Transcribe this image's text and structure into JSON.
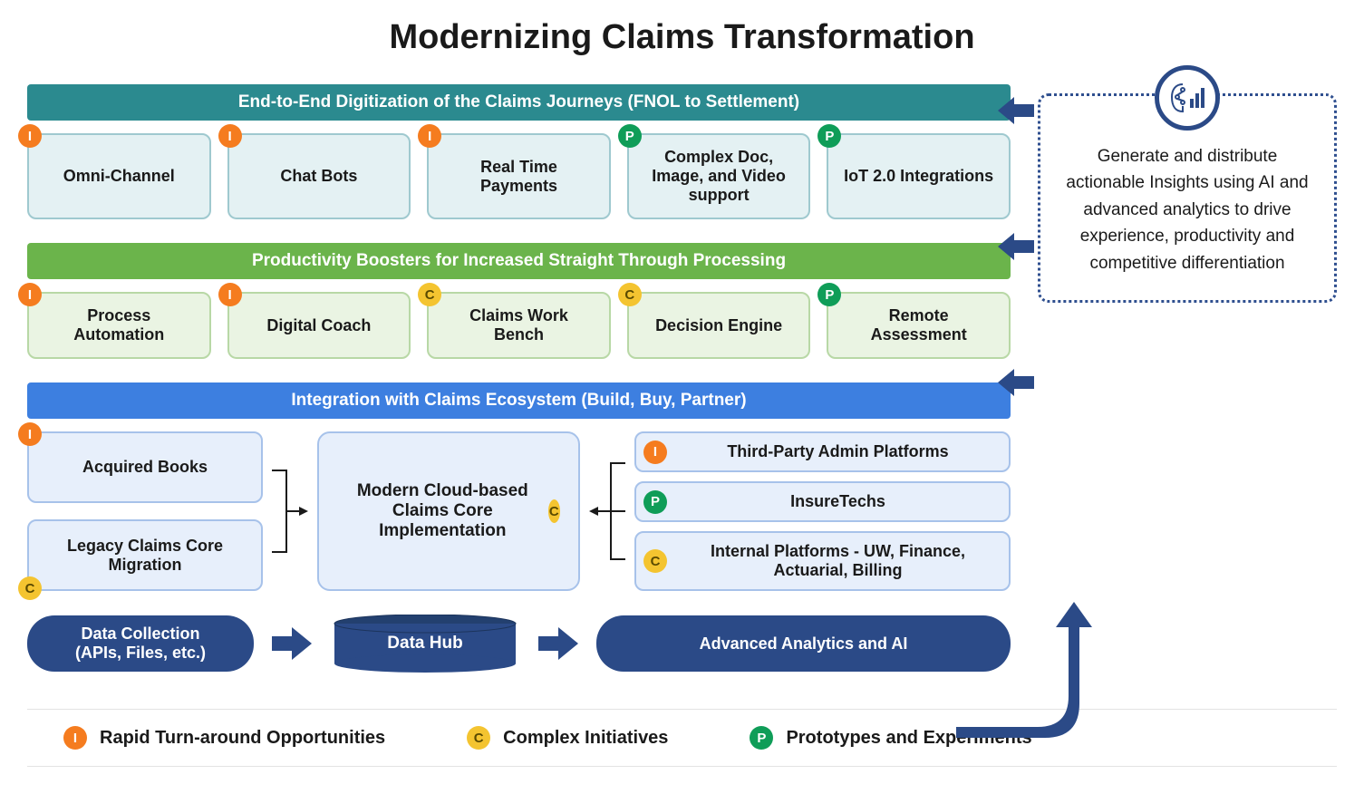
{
  "title": "Modernizing Claims Transformation",
  "colors": {
    "badge_I_bg": "#f57c1f",
    "badge_C_bg": "#f4c430",
    "badge_C_text": "#5a4a00",
    "badge_P_bg": "#0f9d58",
    "navy": "#2b4a87",
    "navy_dark": "#23406f",
    "sect1_bar": "#2b8a8f",
    "sect1_card_bg": "#e4f1f3",
    "sect1_card_border": "#9fc9cf",
    "sect2_bar": "#6bb44b",
    "sect2_card_bg": "#eaf4e3",
    "sect2_card_border": "#b8d8a6",
    "sect3_bar": "#3d7fe0",
    "sect3_card_bg": "#e7effb",
    "sect3_card_border": "#a7c2ea",
    "legend_border": "#e3e3e3"
  },
  "sections": {
    "s1": {
      "header": "End-to-End Digitization of the Claims Journeys (FNOL to Settlement)",
      "cards": [
        {
          "badge": "I",
          "label": "Omni-Channel"
        },
        {
          "badge": "I",
          "label": "Chat Bots"
        },
        {
          "badge": "I",
          "label": "Real Time Payments"
        },
        {
          "badge": "P",
          "label": "Complex Doc, Image, and Video support"
        },
        {
          "badge": "P",
          "label": "IoT 2.0 Integrations"
        }
      ]
    },
    "s2": {
      "header": "Productivity Boosters for Increased Straight Through Processing",
      "cards": [
        {
          "badge": "I",
          "label": "Process Automation"
        },
        {
          "badge": "I",
          "label": "Digital Coach"
        },
        {
          "badge": "C",
          "label": "Claims Work Bench"
        },
        {
          "badge": "C",
          "label": "Decision Engine"
        },
        {
          "badge": "P",
          "label": "Remote Assessment"
        }
      ]
    },
    "s3": {
      "header": "Integration  with Claims Ecosystem (Build, Buy, Partner)",
      "left": [
        {
          "badge": "I",
          "label": "Acquired Books",
          "badgePos": "tl"
        },
        {
          "badge": "C",
          "label": "Legacy Claims Core Migration",
          "badgePos": "bl"
        }
      ],
      "center": {
        "badge": "C",
        "label": "Modern Cloud-based Claims Core Implementation",
        "badgePos": "bl"
      },
      "right": [
        {
          "badge": "I",
          "label": "Third-Party Admin Platforms"
        },
        {
          "badge": "P",
          "label": "InsureTechs"
        },
        {
          "badge": "C",
          "label": "Internal Platforms - UW, Finance, Actuarial, Billing"
        }
      ]
    }
  },
  "flow": {
    "a": "Data Collection\n(APIs, Files, etc.)",
    "b": "Data Hub",
    "c": "Advanced Analytics and AI"
  },
  "side_text": "Generate and distribute actionable Insights using AI and advanced analytics to drive experience, productivity and competitive differentiation",
  "legend": {
    "i": {
      "letter": "I",
      "label": "Rapid Turn-around Opportunities"
    },
    "c": {
      "letter": "C",
      "label": "Complex Initiatives"
    },
    "p": {
      "letter": "P",
      "label": "Prototypes and Experiments"
    }
  }
}
